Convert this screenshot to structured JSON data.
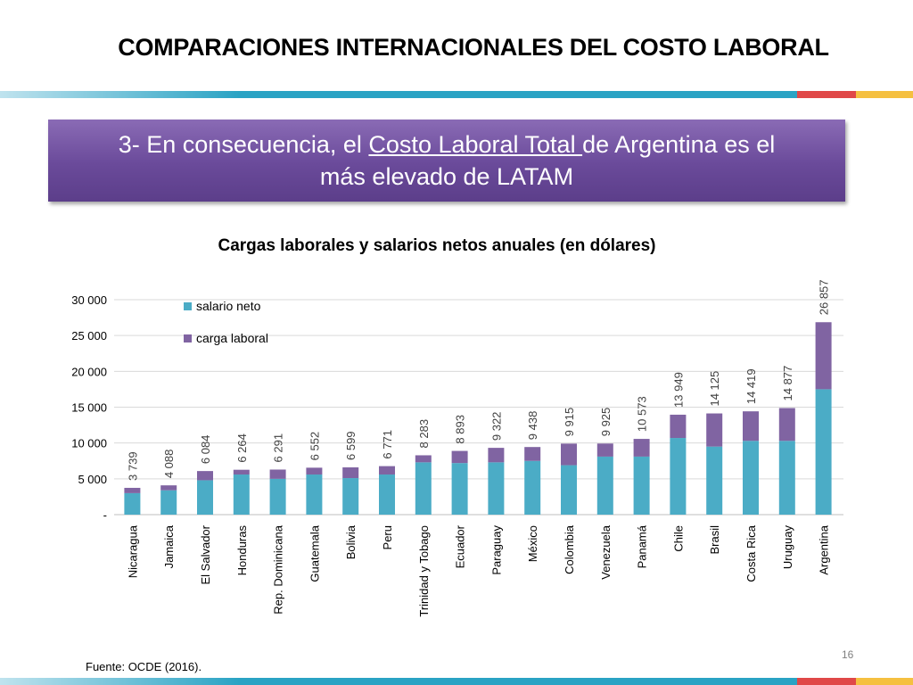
{
  "slide": {
    "title": "COMPARACIONES INTERNACIONALES DEL COSTO LABORAL",
    "banner_part1": "3- En consecuencia, el ",
    "banner_underline": "Costo Laboral Total ",
    "banner_part2": "de Argentina es el",
    "banner_line2": "más elevado de LATAM",
    "source": "Fuente: OCDE (2016).",
    "page_number": "16"
  },
  "colors": {
    "salario": "#4bacc6",
    "carga": "#8064a2",
    "banner": "#6a4a9a"
  },
  "chart_data": {
    "type": "bar",
    "stacked": true,
    "title": "Cargas laborales y salarios netos anuales (en dólares)",
    "categories": [
      "Nicaragua",
      "Jamaica",
      "El Salvador",
      "Honduras",
      "Rep. Dominicana",
      "Guatemala",
      "Bolivia",
      "Peru",
      "Trinidad y Tobago",
      "Ecuador",
      "Paraguay",
      "México",
      "Colombia",
      "Venezuela",
      "Panamá",
      "Chile",
      "Brasil",
      "Costa Rica",
      "Uruguay",
      "Argentina"
    ],
    "series": [
      {
        "name": "salario neto",
        "values": [
          3000,
          3400,
          4800,
          5600,
          5000,
          5600,
          5100,
          5600,
          7300,
          7200,
          7300,
          7500,
          6900,
          8100,
          8100,
          10700,
          9500,
          10300,
          10300,
          17500
        ]
      },
      {
        "name": "carga laboral",
        "values": [
          739,
          688,
          1284,
          664,
          1291,
          952,
          1499,
          1171,
          983,
          1693,
          2022,
          1938,
          3015,
          1825,
          2473,
          3249,
          4625,
          4119,
          4577,
          9357
        ]
      }
    ],
    "totals": [
      3739,
      4088,
      6084,
      6264,
      6291,
      6552,
      6599,
      6771,
      8283,
      8893,
      9322,
      9438,
      9915,
      9925,
      10573,
      13949,
      14125,
      14419,
      14877,
      26857
    ],
    "total_labels": [
      "3 739",
      "4 088",
      "6 084",
      "6 264",
      "6 291",
      "6 552",
      "6 599",
      "6 771",
      "8 283",
      "8 893",
      "9 322",
      "9 438",
      "9 915",
      "9 925",
      "10 573",
      "13 949",
      "14 125",
      "14 419",
      "14 877",
      "26 857"
    ],
    "yticks": [
      0,
      5000,
      10000,
      15000,
      20000,
      25000,
      30000
    ],
    "ytick_labels": [
      "-",
      "5 000",
      "10 000",
      "15 000",
      "20 000",
      "25 000",
      "30 000"
    ],
    "ylim": [
      0,
      30000
    ],
    "grid": true,
    "legend": "top-left"
  }
}
